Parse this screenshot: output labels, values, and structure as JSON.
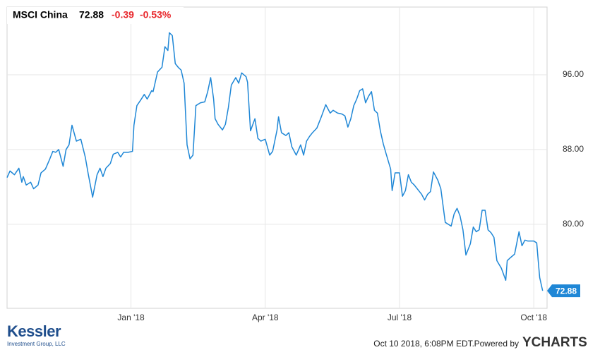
{
  "chart_data": {
    "type": "line",
    "title": "MSCI China",
    "last_value": 72.88,
    "change": -0.39,
    "change_percent": {
      "value": -0.53,
      "label": "-0.53%"
    },
    "change_color": "#e8262b",
    "x": [
      7,
      9,
      12,
      15,
      17,
      18,
      20,
      23,
      25,
      28,
      30,
      33,
      36,
      38,
      40,
      42,
      45,
      47,
      49,
      51,
      54,
      57,
      60,
      62,
      65,
      68,
      70,
      72,
      74,
      77,
      79,
      82,
      84,
      86,
      89,
      92,
      93,
      95,
      98,
      100,
      102,
      105,
      106,
      109,
      112,
      114,
      116,
      117,
      119,
      121,
      123,
      125,
      127,
      129,
      131,
      133,
      135,
      138,
      141,
      143,
      145,
      147,
      148,
      150,
      153,
      155,
      157,
      159,
      162,
      164,
      166,
      169,
      170,
      172,
      175,
      177,
      179,
      182,
      185,
      187,
      190,
      191,
      193,
      196,
      198,
      200,
      203,
      206,
      208,
      210,
      212,
      214,
      217,
      220,
      223,
      226,
      228,
      231,
      234,
      236,
      238,
      240,
      242,
      244,
      246,
      248,
      250,
      252,
      254,
      256,
      258,
      260,
      262,
      264,
      267,
      268,
      270,
      273,
      275,
      277,
      279,
      281,
      283,
      286,
      288,
      290,
      292,
      294,
      296,
      299,
      301,
      304,
      308,
      310,
      312,
      314,
      316,
      318,
      321,
      323,
      325,
      327,
      329,
      331,
      333,
      335,
      337,
      339,
      342,
      345,
      346,
      348,
      351,
      354,
      356,
      358,
      360,
      364,
      366,
      367,
      368,
      370
    ],
    "series": [
      {
        "name": "MSCI China",
        "color": "#1f87d6",
        "values": [
          85.0,
          85.7,
          85.3,
          86.0,
          84.5,
          85.1,
          84.2,
          84.5,
          83.8,
          84.2,
          85.5,
          85.9,
          87.0,
          87.8,
          87.7,
          88.0,
          86.2,
          88.0,
          88.5,
          90.6,
          88.9,
          89.1,
          87.2,
          85.4,
          82.9,
          85.3,
          86.0,
          85.1,
          86.0,
          86.5,
          87.5,
          87.7,
          87.2,
          87.7,
          87.7,
          87.8,
          90.6,
          92.7,
          93.4,
          93.9,
          93.4,
          94.3,
          94.2,
          96.3,
          96.8,
          99.0,
          98.6,
          100.5,
          100.2,
          97.2,
          96.8,
          96.5,
          95.1,
          88.5,
          87.0,
          87.4,
          92.7,
          93.0,
          93.1,
          94.2,
          95.7,
          93.4,
          91.3,
          90.7,
          90.1,
          90.7,
          92.5,
          94.9,
          95.7,
          95.1,
          96.2,
          95.8,
          95.2,
          90.0,
          91.3,
          89.2,
          88.9,
          89.1,
          87.4,
          87.8,
          90.1,
          91.5,
          89.8,
          89.5,
          89.8,
          88.3,
          87.4,
          88.5,
          87.4,
          88.9,
          89.4,
          89.8,
          90.3,
          91.5,
          92.8,
          91.9,
          92.2,
          91.9,
          91.8,
          91.6,
          90.4,
          91.3,
          92.7,
          93.4,
          94.3,
          94.5,
          93.0,
          93.7,
          94.2,
          92.2,
          91.9,
          90.0,
          88.6,
          87.5,
          85.9,
          83.6,
          85.5,
          85.5,
          83.0,
          83.6,
          85.3,
          84.5,
          84.2,
          83.6,
          83.2,
          82.6,
          83.2,
          83.5,
          85.6,
          84.7,
          83.8,
          80.2,
          79.8,
          81.1,
          81.7,
          80.9,
          79.4,
          76.7,
          77.9,
          79.7,
          79.2,
          79.4,
          81.5,
          81.5,
          79.4,
          79.1,
          78.6,
          76.1,
          75.3,
          74.0,
          76.1,
          76.4,
          76.8,
          79.2,
          77.7,
          78.3,
          78.2,
          78.2,
          78.0,
          76.1,
          74.3,
          72.88
        ]
      }
    ],
    "xlim": [
      7,
      373
    ],
    "xticks": [
      {
        "value": 91,
        "label": "Jan '18"
      },
      {
        "value": 182,
        "label": "Apr '18"
      },
      {
        "value": 273,
        "label": "Jul '18"
      },
      {
        "value": 364,
        "label": "Oct '18"
      }
    ],
    "ylim": [
      71,
      103.25
    ],
    "yticks": [
      {
        "value": 80,
        "label": "80.00"
      },
      {
        "value": 88,
        "label": "88.00"
      },
      {
        "value": 96,
        "label": "96.00"
      }
    ],
    "grid": true
  },
  "footer": {
    "brand": "Kessler",
    "brand_sub": "Investment Group, LLC",
    "timestamp": "Oct 10 2018, 6:08PM EDT.",
    "powered": "Powered by",
    "logo": "YCHARTS"
  }
}
